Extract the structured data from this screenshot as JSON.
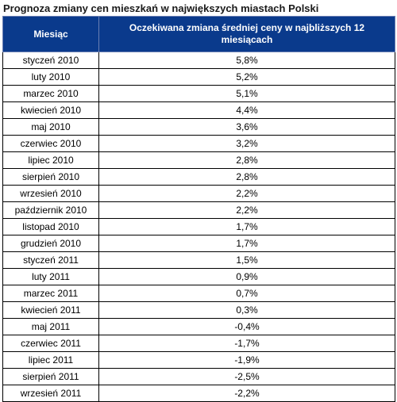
{
  "title": "Prognoza zmiany cen mieszkań w największych miastach Polski",
  "table": {
    "headers": [
      "Miesiąc",
      "Oczekiwana zmiana średniej ceny w najbliższych 12 miesiącach"
    ],
    "rows": [
      [
        "styczeń 2010",
        "5,8%"
      ],
      [
        "luty 2010",
        "5,2%"
      ],
      [
        "marzec 2010",
        "5,1%"
      ],
      [
        "kwiecień 2010",
        "4,4%"
      ],
      [
        "maj 2010",
        "3,6%"
      ],
      [
        "czerwiec 2010",
        "3,2%"
      ],
      [
        "lipiec 2010",
        "2,8%"
      ],
      [
        "sierpień 2010",
        "2,8%"
      ],
      [
        "wrzesień 2010",
        "2,2%"
      ],
      [
        "październik 2010",
        "2,2%"
      ],
      [
        "listopad 2010",
        "1,7%"
      ],
      [
        "grudzień 2010",
        "1,7%"
      ],
      [
        "styczeń 2011",
        "1,5%"
      ],
      [
        "luty 2011",
        "0,9%"
      ],
      [
        "marzec 2011",
        "0,7%"
      ],
      [
        "kwiecień 2011",
        "0,3%"
      ],
      [
        "maj 2011",
        "-0,4%"
      ],
      [
        "czerwiec 2011",
        "-1,7%"
      ],
      [
        "lipiec 2011",
        "-1,9%"
      ],
      [
        "sierpień 2011",
        "-2,5%"
      ],
      [
        "wrzesień 2011",
        "-2,2%"
      ]
    ]
  },
  "colors": {
    "header_bg": "#0a3a8c",
    "header_text": "#ffffff",
    "border": "#000000"
  }
}
